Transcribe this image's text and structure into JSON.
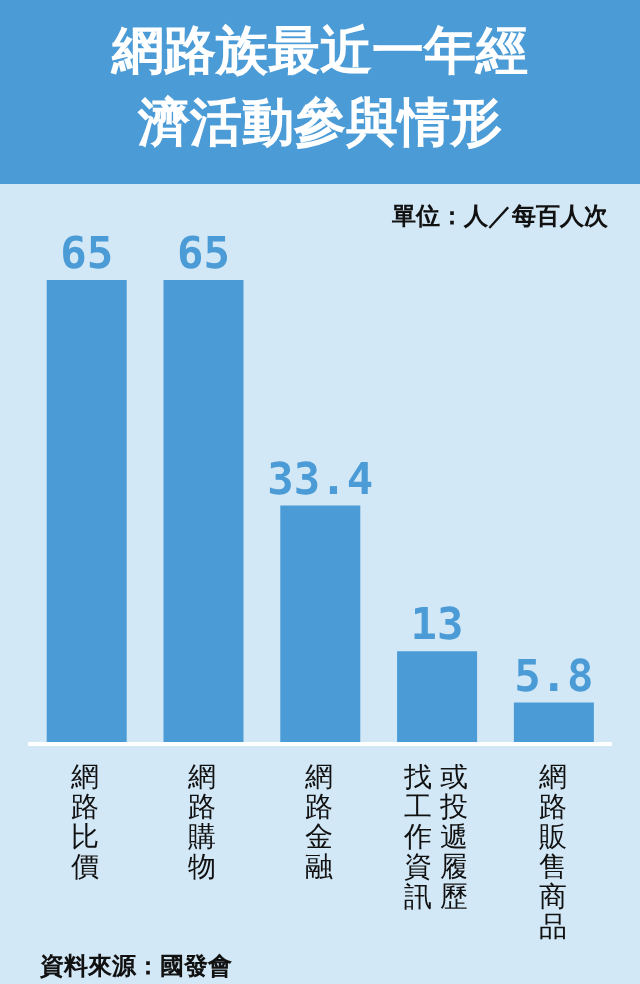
{
  "chart_data": {
    "type": "bar",
    "title": "網路族最近一年經濟活動參與情形",
    "categories": [
      "網路比價",
      "網路購物",
      "網路金融",
      "找工作資訊或投遞履歷",
      "網路販售商品"
    ],
    "values": [
      65,
      65,
      33.4,
      13,
      5.8
    ],
    "color": "#4b9bd6",
    "data_labels": true,
    "grid": false,
    "legend": false,
    "annotations": [
      "單位：人／每百人次",
      "資料來源：國發會"
    ]
  }
}
